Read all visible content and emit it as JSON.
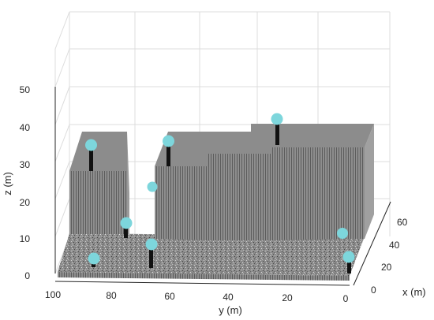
{
  "chart_data": {
    "type": "3d-surface",
    "title": "",
    "xlabel": "x (m)",
    "ylabel": "y (m)",
    "zlabel": "z (m)",
    "x_ticks": [
      "0",
      "20",
      "40",
      "60"
    ],
    "y_ticks": [
      "100",
      "80",
      "60",
      "40",
      "20",
      "0"
    ],
    "z_ticks": [
      "0",
      "10",
      "20",
      "30",
      "40",
      "50"
    ],
    "xlim": [
      0,
      70
    ],
    "ylim": [
      0,
      100
    ],
    "zlim": [
      0,
      55
    ],
    "grid": true,
    "colors": {
      "surface_gray": "#8a8a8a",
      "marker_cyan": "#7dd6dc",
      "pole_black": "#111111",
      "grid": "#dcdcdc"
    },
    "buildings": [
      {
        "name": "left-block",
        "y_range": [
          77,
          92
        ],
        "height": 28
      },
      {
        "name": "middle-block",
        "y_range": [
          27,
          64
        ],
        "height": 35
      },
      {
        "name": "right-block",
        "y_range": [
          0,
          27
        ],
        "height": 40
      }
    ],
    "sensors": [
      {
        "y": 88,
        "x": 5,
        "z": 36
      },
      {
        "y": 67,
        "x": 30,
        "z": 37
      },
      {
        "y": 23,
        "x": 35,
        "z": 43
      },
      {
        "y": 67,
        "x": 60,
        "z": 22
      },
      {
        "y": 76,
        "x": 20,
        "z": 14
      },
      {
        "y": 68,
        "x": 10,
        "z": 8
      },
      {
        "y": 88,
        "x": 3,
        "z": 4
      },
      {
        "y": 2,
        "x": 50,
        "z": 10
      },
      {
        "y": 1,
        "x": 10,
        "z": 5
      }
    ]
  }
}
